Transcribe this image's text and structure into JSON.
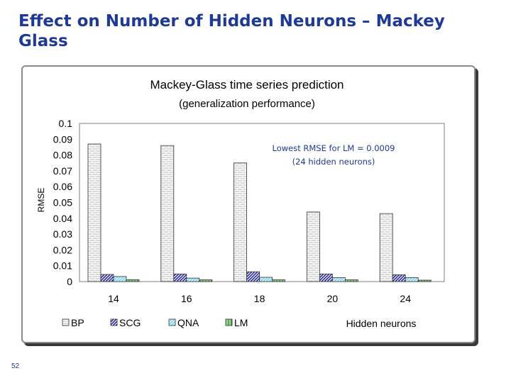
{
  "slide": {
    "title": "Effect on Number of Hidden Neurons – Mackey Glass",
    "page_number": "52"
  },
  "colors": {
    "title": "#1f3a93",
    "annotation": "#1f3a93",
    "BP": "#d8d8d8",
    "SCG": "#2a2aa0",
    "QNA": "#7fd4f0",
    "LM": "#90d890"
  },
  "chart_data": {
    "type": "bar",
    "title": "Mackey-Glass time series prediction",
    "subtitle": "(generalization performance)",
    "xlabel": "Hidden neurons",
    "ylabel": "RMSE",
    "categories": [
      "14",
      "16",
      "18",
      "20",
      "24"
    ],
    "ylim": [
      0,
      0.1
    ],
    "yticks": [
      "0",
      "0.01",
      "0.02",
      "0.03",
      "0.04",
      "0.05",
      "0.06",
      "0.07",
      "0.08",
      "0.09",
      "0.1"
    ],
    "grid": false,
    "legend_position": "bottom-left",
    "series": [
      {
        "name": "BP",
        "values": [
          0.087,
          0.086,
          0.075,
          0.044,
          0.043
        ]
      },
      {
        "name": "SCG",
        "values": [
          0.0045,
          0.0048,
          0.0062,
          0.0048,
          0.0043
        ]
      },
      {
        "name": "QNA",
        "values": [
          0.0032,
          0.0022,
          0.0027,
          0.0025,
          0.0025
        ]
      },
      {
        "name": "LM",
        "values": [
          0.0012,
          0.0011,
          0.0011,
          0.0011,
          0.0009
        ]
      }
    ],
    "annotation": [
      "Lowest RMSE for LM = 0.0009",
      "(24 hidden neurons)"
    ]
  }
}
